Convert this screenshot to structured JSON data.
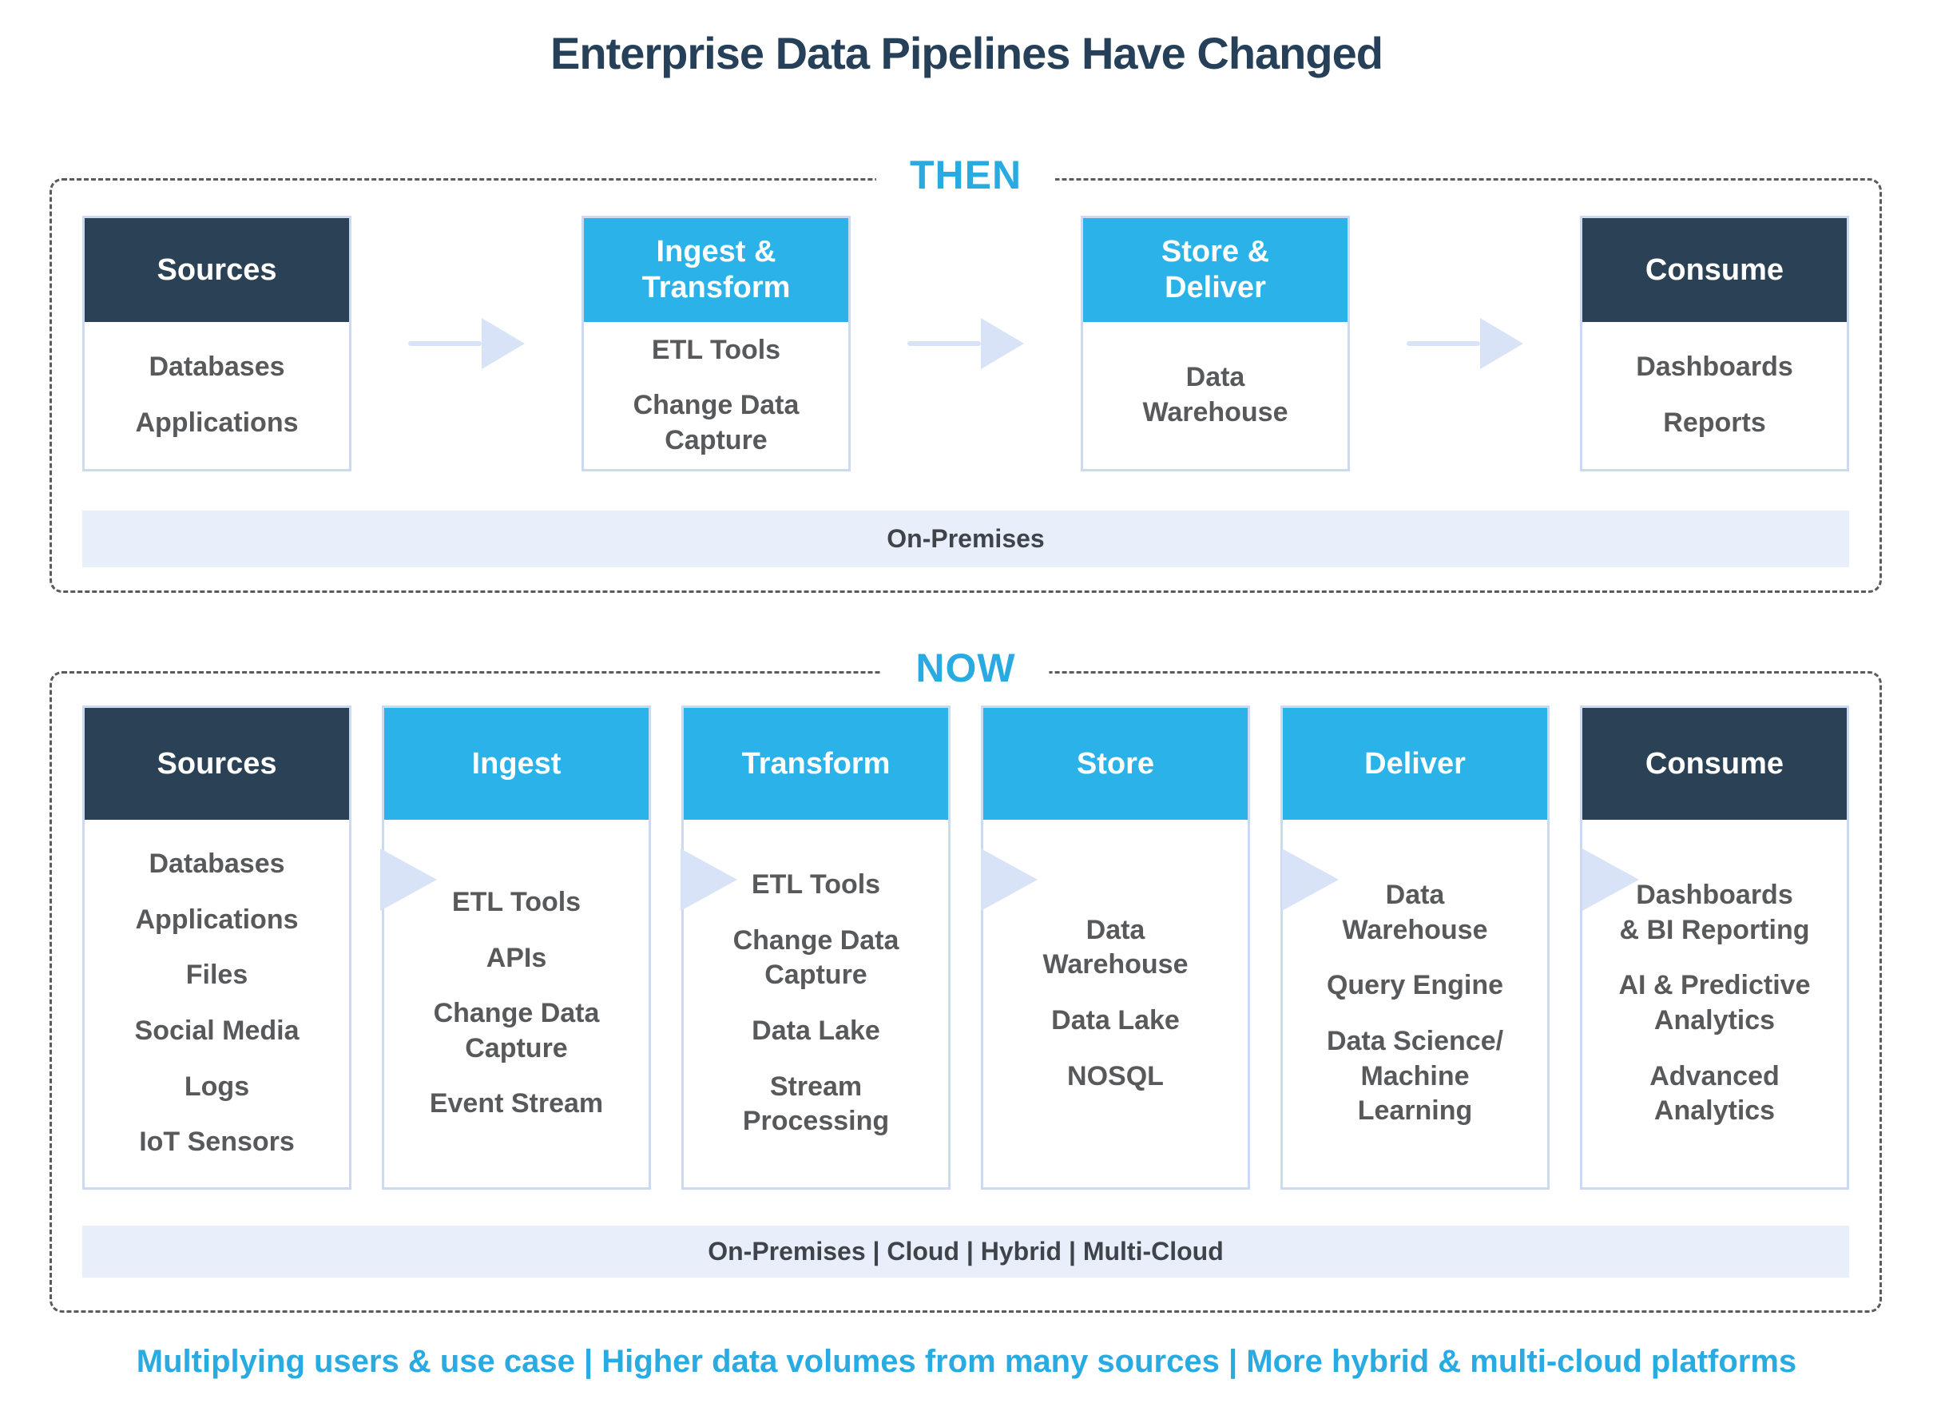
{
  "title": "Enterprise Data Pipelines Have Changed",
  "colors": {
    "accent_blue": "#29abe2",
    "header_blue": "#2bb2e8",
    "header_navy": "#2b4155",
    "item_gray": "#58595b",
    "bar_background": "#e8eefa",
    "arrow": "#d9e3f7",
    "box_border": "#cbd9f3"
  },
  "then": {
    "label": "THEN",
    "boxes": [
      {
        "header": "Sources",
        "items": [
          "Databases",
          "Applications"
        ]
      },
      {
        "header": "Ingest &\nTransform",
        "items": [
          "ETL Tools",
          "Change Data\nCapture"
        ]
      },
      {
        "header": "Store &\nDeliver",
        "items": [
          "Data\nWarehouse"
        ]
      },
      {
        "header": "Consume",
        "items": [
          "Dashboards",
          "Reports"
        ]
      }
    ],
    "platform_bar": "On-Premises"
  },
  "now": {
    "label": "NOW",
    "boxes": [
      {
        "header": "Sources",
        "items": [
          "Databases",
          "Applications",
          "Files",
          "Social Media",
          "Logs",
          "IoT Sensors"
        ]
      },
      {
        "header": "Ingest",
        "items": [
          "ETL Tools",
          "APIs",
          "Change Data\nCapture",
          "Event Stream"
        ]
      },
      {
        "header": "Transform",
        "items": [
          "ETL Tools",
          "Change Data\nCapture",
          "Data Lake",
          "Stream\nProcessing"
        ]
      },
      {
        "header": "Store",
        "items": [
          "Data\nWarehouse",
          "Data Lake",
          "NOSQL"
        ]
      },
      {
        "header": "Deliver",
        "items": [
          "Data\nWarehouse",
          "Query Engine",
          "Data Science/\nMachine\nLearning"
        ]
      },
      {
        "header": "Consume",
        "items": [
          "Dashboards\n& BI Reporting",
          "AI & Predictive\nAnalytics",
          "Advanced\nAnalytics"
        ]
      }
    ],
    "platform_bar": "On-Premises | Cloud | Hybrid | Multi-Cloud"
  },
  "footer": "Multiplying users & use case | Higher data volumes from many sources | More hybrid & multi-cloud platforms"
}
